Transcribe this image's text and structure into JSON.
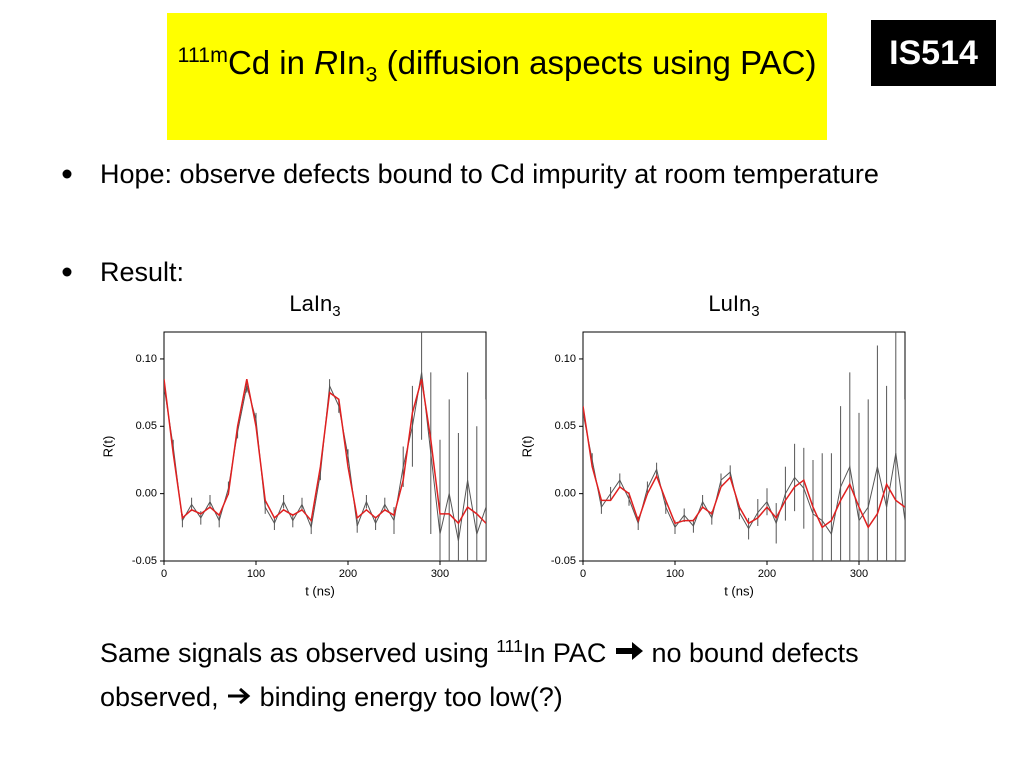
{
  "header": {
    "title": {
      "sup": "111m",
      "a": "Cd in ",
      "italic": "R",
      "b": "In",
      "sub": "3",
      "c": " (diffusion aspects using PAC)"
    },
    "badge": "IS514"
  },
  "bullets": [
    "Hope: observe defects bound to Cd impurity at room temperature",
    "Result:"
  ],
  "conclusion": {
    "a": "Same signals as observed using ",
    "sup": "111",
    "b": "In PAC",
    "c": " no bound defects observed, ",
    "d": " binding energy too low(?)"
  },
  "chart_data": [
    {
      "type": "line",
      "title": {
        "text": "LaIn",
        "sub": "3"
      },
      "x_label": "t (ns)",
      "y_label": "R(t)",
      "xlim": [
        0,
        350
      ],
      "ylim": [
        -0.05,
        0.12
      ],
      "xticks": [
        0,
        100,
        200,
        300
      ],
      "yticks": [
        {
          "value": -0.05,
          "label": "-0.05"
        },
        {
          "value": 0,
          "label": "0.00"
        },
        0.05,
        {
          "value": 0.1,
          "label": "0.10"
        }
      ],
      "x": [
        0,
        10,
        20,
        30,
        40,
        50,
        60,
        70,
        80,
        90,
        100,
        110,
        120,
        130,
        140,
        150,
        160,
        170,
        180,
        190,
        200,
        210,
        220,
        230,
        240,
        250,
        260,
        270,
        280,
        290,
        300,
        310,
        320,
        330,
        340,
        350
      ],
      "series": [
        {
          "color": "#555555",
          "values": [
            0.08,
            0.035,
            -0.02,
            -0.008,
            -0.018,
            -0.006,
            -0.02,
            0.004,
            0.046,
            0.08,
            0.055,
            -0.01,
            -0.022,
            -0.006,
            -0.02,
            -0.008,
            -0.025,
            0.015,
            0.08,
            0.065,
            0.028,
            -0.024,
            -0.006,
            -0.022,
            -0.008,
            -0.02,
            0.02,
            0.05,
            0.09,
            0.03,
            -0.03,
            0.0,
            -0.035,
            0.01,
            -0.03,
            -0.01
          ],
          "errors": [
            0.005,
            0.005,
            0.005,
            0.005,
            0.005,
            0.005,
            0.005,
            0.005,
            0.005,
            0.005,
            0.005,
            0.005,
            0.005,
            0.005,
            0.005,
            0.005,
            0.005,
            0.005,
            0.005,
            0.005,
            0.005,
            0.005,
            0.005,
            0.005,
            0.005,
            0.01,
            0.015,
            0.03,
            0.05,
            0.06,
            0.07,
            0.07,
            0.08,
            0.08,
            0.08,
            0.08
          ]
        },
        {
          "color": "#e02020",
          "values": [
            0.085,
            0.03,
            -0.018,
            -0.012,
            -0.015,
            -0.01,
            -0.016,
            0.0,
            0.05,
            0.085,
            0.05,
            -0.005,
            -0.018,
            -0.012,
            -0.016,
            -0.012,
            -0.02,
            0.02,
            0.075,
            0.07,
            0.02,
            -0.018,
            -0.012,
            -0.018,
            -0.012,
            -0.016,
            0.01,
            0.06,
            0.085,
            0.04,
            -0.015,
            -0.015,
            -0.022,
            -0.01,
            -0.015,
            -0.022
          ]
        }
      ]
    },
    {
      "type": "line",
      "title": {
        "text": "LuIn",
        "sub": "3"
      },
      "x_label": "t (ns)",
      "y_label": "R(t)",
      "xlim": [
        0,
        350
      ],
      "ylim": [
        -0.05,
        0.12
      ],
      "xticks": [
        0,
        100,
        200,
        300
      ],
      "yticks": [
        {
          "value": -0.05,
          "label": "-0.05"
        },
        {
          "value": 0,
          "label": "0.00"
        },
        0.05,
        {
          "value": 0.1,
          "label": "0.10"
        }
      ],
      "x": [
        0,
        10,
        20,
        30,
        40,
        50,
        60,
        70,
        80,
        90,
        100,
        110,
        120,
        130,
        140,
        150,
        160,
        170,
        180,
        190,
        200,
        210,
        220,
        230,
        240,
        250,
        260,
        270,
        280,
        290,
        300,
        310,
        320,
        330,
        340,
        350
      ],
      "series": [
        {
          "color": "#555555",
          "values": [
            0.06,
            0.025,
            -0.01,
            0.0,
            0.01,
            -0.004,
            -0.022,
            0.004,
            0.018,
            -0.01,
            -0.025,
            -0.016,
            -0.024,
            -0.006,
            -0.018,
            0.01,
            0.016,
            -0.014,
            -0.026,
            -0.014,
            -0.006,
            -0.022,
            0.0,
            0.012,
            0.004,
            -0.015,
            -0.02,
            -0.03,
            0.005,
            0.02,
            -0.02,
            -0.01,
            0.02,
            -0.01,
            0.03,
            -0.02
          ],
          "errors": [
            0.005,
            0.005,
            0.005,
            0.005,
            0.005,
            0.005,
            0.005,
            0.005,
            0.005,
            0.005,
            0.005,
            0.005,
            0.005,
            0.005,
            0.005,
            0.005,
            0.005,
            0.005,
            0.008,
            0.01,
            0.01,
            0.015,
            0.02,
            0.025,
            0.03,
            0.04,
            0.05,
            0.06,
            0.06,
            0.07,
            0.08,
            0.08,
            0.09,
            0.09,
            0.09,
            0.09
          ]
        },
        {
          "color": "#e02020",
          "values": [
            0.065,
            0.02,
            -0.005,
            -0.005,
            0.005,
            0.0,
            -0.02,
            0.0,
            0.013,
            -0.005,
            -0.022,
            -0.02,
            -0.02,
            -0.01,
            -0.015,
            0.005,
            0.012,
            -0.01,
            -0.022,
            -0.018,
            -0.01,
            -0.018,
            -0.005,
            0.005,
            0.01,
            -0.01,
            -0.025,
            -0.02,
            -0.005,
            0.007,
            -0.01,
            -0.025,
            -0.015,
            0.007,
            -0.005,
            -0.01
          ]
        }
      ]
    }
  ]
}
